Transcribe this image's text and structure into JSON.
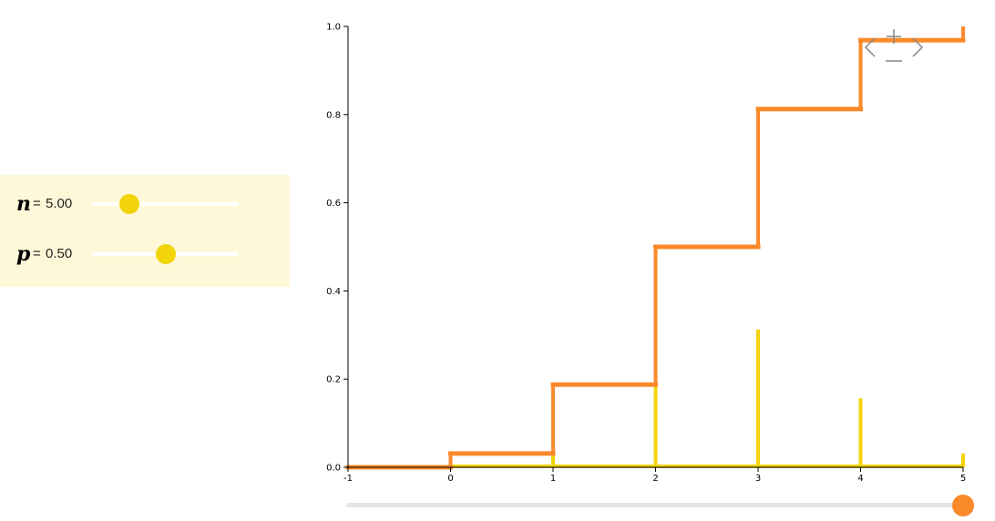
{
  "params": {
    "n": {
      "symbol": "n",
      "eq": "=",
      "value": 5,
      "label": "5.00",
      "min": 0,
      "max": 20
    },
    "p": {
      "symbol": "p",
      "eq": "=",
      "value": 0.5,
      "label": "0.50",
      "min": 0,
      "max": 1
    }
  },
  "x_slider": {
    "value": 5,
    "min": -1,
    "max": 5
  },
  "colors": {
    "cdf": "#fb8a2b",
    "pmf": "#f2d40a",
    "panel_bg": "#fff8d8",
    "zoom_icon": "#888888"
  },
  "zoom_controls": {
    "left": "chevron-left-icon",
    "right": "chevron-right-icon",
    "plus": "plus-icon",
    "minus": "minus-icon"
  },
  "chart_data": {
    "type": "line",
    "xlim": [
      -1,
      5
    ],
    "ylim": [
      0,
      1
    ],
    "x_ticks": [
      "-1",
      "0",
      "1",
      "2",
      "3",
      "4",
      "5"
    ],
    "y_ticks": [
      "0.0",
      "0.2",
      "0.4",
      "0.6",
      "0.8",
      "1.0"
    ],
    "grid": false,
    "series": [
      {
        "kind": "step",
        "x": [
          -1,
          0,
          1,
          2,
          3,
          4,
          5
        ],
        "y": [
          0,
          0.03125,
          0.1875,
          0.5,
          0.8125,
          0.96875,
          1.0
        ]
      },
      {
        "kind": "impulse",
        "x": [
          0,
          1,
          2,
          3,
          4,
          5
        ],
        "y": [
          0.03125,
          0.15625,
          0.3125,
          0.3125,
          0.15625,
          0.03125
        ]
      }
    ]
  }
}
